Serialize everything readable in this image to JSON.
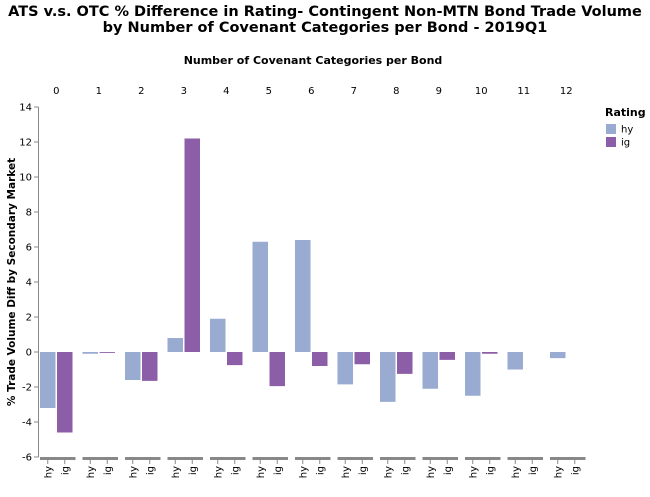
{
  "chart_data": {
    "type": "bar",
    "title_lines": [
      "ATS v.s. OTC % Difference in Rating- Contingent Non-MTN Bond Trade Volume",
      "by Number of Covenant Categories per Bond - 2019Q1"
    ],
    "column_axis_title": "Number of Covenant Categories per Bond",
    "ylabel": "% Trade Volume Diff by Secondary Market",
    "ylim": [
      -6,
      14
    ],
    "yticks": [
      -6,
      -4,
      -2,
      0,
      2,
      4,
      6,
      8,
      10,
      12,
      14
    ],
    "legend": {
      "title": "Rating",
      "placement": "right",
      "entries": [
        {
          "label": "hy",
          "color": "#9aabd2"
        },
        {
          "label": "ig",
          "color": "#8c5ea8"
        }
      ]
    },
    "sub_categories": [
      "hy",
      "ig"
    ],
    "groups": [
      {
        "label": "0",
        "hy": -3.2,
        "ig": -4.6
      },
      {
        "label": "1",
        "hy": -0.1,
        "ig": -0.05
      },
      {
        "label": "2",
        "hy": -1.6,
        "ig": -1.65
      },
      {
        "label": "3",
        "hy": 0.8,
        "ig": 12.2
      },
      {
        "label": "4",
        "hy": 1.9,
        "ig": -0.75
      },
      {
        "label": "5",
        "hy": 6.3,
        "ig": -1.95
      },
      {
        "label": "6",
        "hy": 6.4,
        "ig": -0.8
      },
      {
        "label": "7",
        "hy": -1.85,
        "ig": -0.7
      },
      {
        "label": "8",
        "hy": -2.85,
        "ig": -1.25
      },
      {
        "label": "9",
        "hy": -2.1,
        "ig": -0.45
      },
      {
        "label": "10",
        "hy": -2.5,
        "ig": -0.1
      },
      {
        "label": "11",
        "hy": -1.0,
        "ig": 0
      },
      {
        "label": "12",
        "hy": -0.35,
        "ig": 0
      }
    ]
  }
}
